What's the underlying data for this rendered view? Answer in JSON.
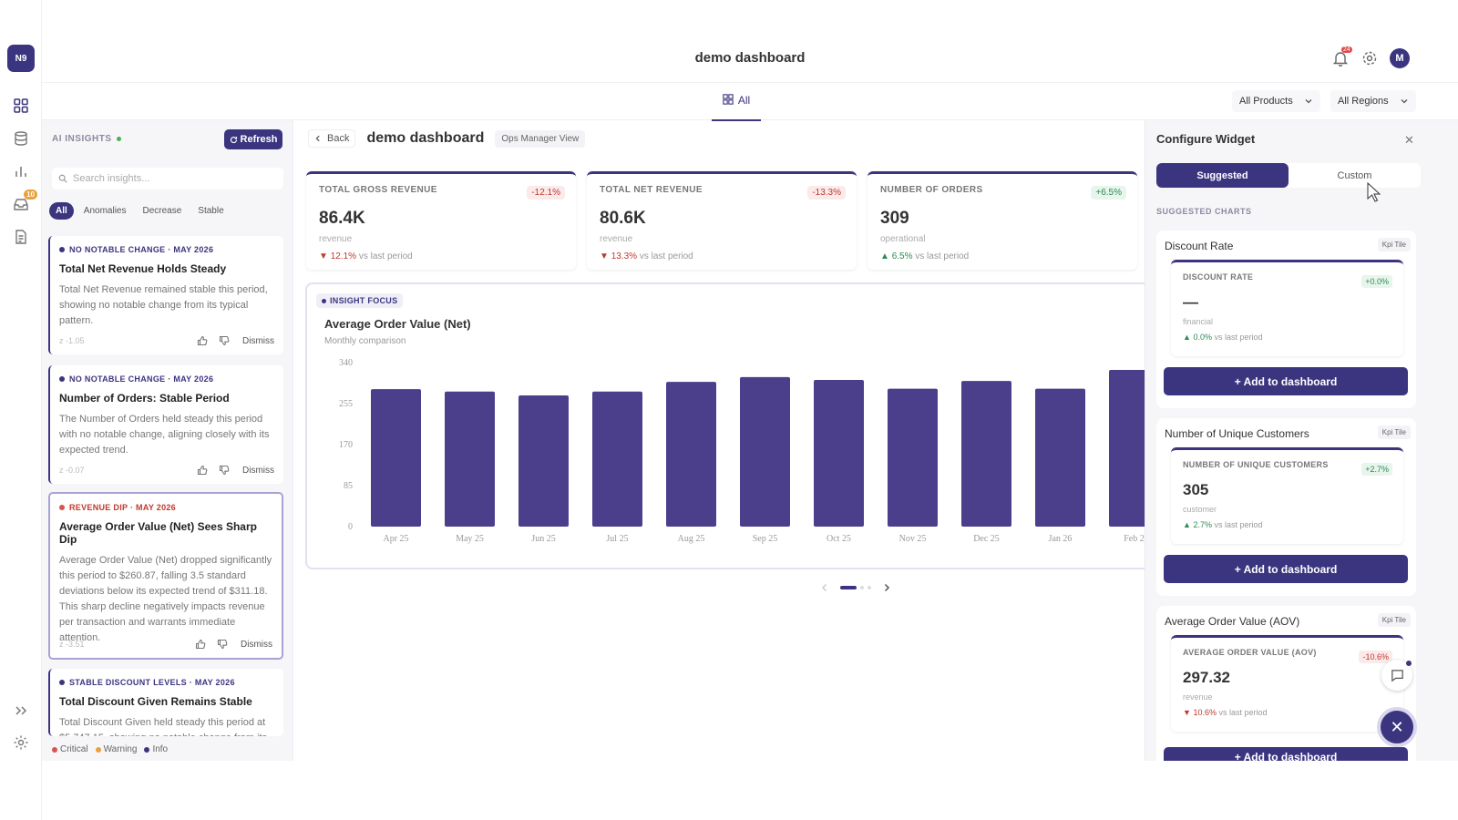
{
  "app": {
    "logo": "N9",
    "title": "demo dashboard",
    "notif_count": "24",
    "avatar": "M"
  },
  "rail": {
    "inbox_badge": "10"
  },
  "tabs": {
    "all_label": "All"
  },
  "filters": {
    "products": "All Products",
    "regions": "All Regions"
  },
  "insights": {
    "header": "AI INSIGHTS",
    "refresh_label": "Refresh",
    "search_placeholder": "Search insights...",
    "chips": [
      "All",
      "Anomalies",
      "Decrease",
      "Stable"
    ],
    "cards": [
      {
        "tag": "NO NOTABLE CHANGE · MAY 2026",
        "title": "Total Net Revenue Holds Steady",
        "desc": "Total Net Revenue remained stable this period, showing no notable change from its typical pattern.",
        "z": "z -1.05",
        "dismiss": "Dismiss"
      },
      {
        "tag": "NO NOTABLE CHANGE · MAY 2026",
        "title": "Number of Orders: Stable Period",
        "desc": "The Number of Orders held steady this period with no notable change, aligning closely with its expected trend.",
        "z": "z -0.07",
        "dismiss": "Dismiss"
      },
      {
        "tag": "REVENUE DIP · MAY 2026",
        "title": "Average Order Value (Net) Sees Sharp Dip",
        "desc": "Average Order Value (Net) dropped significantly this period to $260.87, falling 3.5 standard deviations below its expected trend of $311.18. This sharp decline negatively impacts revenue per transaction and warrants immediate attention.",
        "z": "z -3.51",
        "dismiss": "Dismiss"
      },
      {
        "tag": "STABLE DISCOUNT LEVELS · MAY 2026",
        "title": "Total Discount Given Remains Stable",
        "desc": "Total Discount Given held steady this period at $5,747.15, showing no notable change from its"
      }
    ],
    "legend": [
      "Critical",
      "Warning",
      "Info"
    ],
    "legend_colors": [
      "#d9534f",
      "#e9a23b",
      "#3b3580"
    ]
  },
  "main": {
    "back_label": "Back",
    "title": "demo dashboard",
    "view_badge": "Ops Manager View",
    "kpis": [
      {
        "label": "TOTAL GROSS REVENUE",
        "change": "-12.1%",
        "value": "86.4K",
        "unit": "revenue",
        "vs_arrow": "▼",
        "vs_pct": "12.1%",
        "vs_text": "vs last period"
      },
      {
        "label": "TOTAL NET REVENUE",
        "change": "-13.3%",
        "value": "80.6K",
        "unit": "revenue",
        "vs_arrow": "▼",
        "vs_pct": "13.3%",
        "vs_text": "vs last period"
      },
      {
        "label": "NUMBER OF ORDERS",
        "change": "+6.5%",
        "value": "309",
        "unit": "operational",
        "vs_arrow": "▲",
        "vs_pct": "6.5%",
        "vs_text": "vs last period"
      }
    ],
    "focus_label": "INSIGHT FOCUS",
    "chart_title": "Average Order Value (Net)",
    "chart_subtitle": "Monthly comparison"
  },
  "chart_data": {
    "type": "bar",
    "title": "Average Order Value (Net)",
    "subtitle": "Monthly comparison",
    "categories": [
      "Apr 25",
      "May 25",
      "Jun 25",
      "Jul 25",
      "Aug 25",
      "Sep 25",
      "Oct 25",
      "Nov 25",
      "Dec 25",
      "Jan 26",
      "Feb 2"
    ],
    "values": [
      285,
      280,
      272,
      280,
      300,
      310,
      304,
      286,
      302,
      286,
      325
    ],
    "ylim": [
      0,
      340
    ],
    "yticks": [
      0,
      85,
      170,
      255,
      340
    ],
    "color": "#4b3f8c",
    "grid": false
  },
  "config": {
    "title": "Configure Widget",
    "tab_suggested": "Suggested",
    "tab_custom": "Custom",
    "section_label": "SUGGESTED CHARTS",
    "items": [
      {
        "name": "Discount Rate",
        "type": "Kpi Tile",
        "label": "DISCOUNT RATE",
        "change": "+0.0%",
        "value": "—",
        "unit": "financial",
        "vs_arrow": "▲",
        "vs_pct": "0.0%",
        "vs_text": "vs last period",
        "add": "+ Add to dashboard"
      },
      {
        "name": "Number of Unique Customers",
        "type": "Kpi Tile",
        "label": "NUMBER OF UNIQUE CUSTOMERS",
        "change": "+2.7%",
        "value": "305",
        "unit": "customer",
        "vs_arrow": "▲",
        "vs_pct": "2.7%",
        "vs_text": "vs last period",
        "add": "+ Add to dashboard"
      },
      {
        "name": "Average Order Value (AOV)",
        "type": "Kpi Tile",
        "label": "AVERAGE ORDER VALUE (AOV)",
        "change": "-10.6%",
        "value": "297.32",
        "unit": "revenue",
        "vs_arrow": "▼",
        "vs_pct": "10.6%",
        "vs_text": "vs last period",
        "add": "+ Add to dashboard"
      }
    ]
  }
}
